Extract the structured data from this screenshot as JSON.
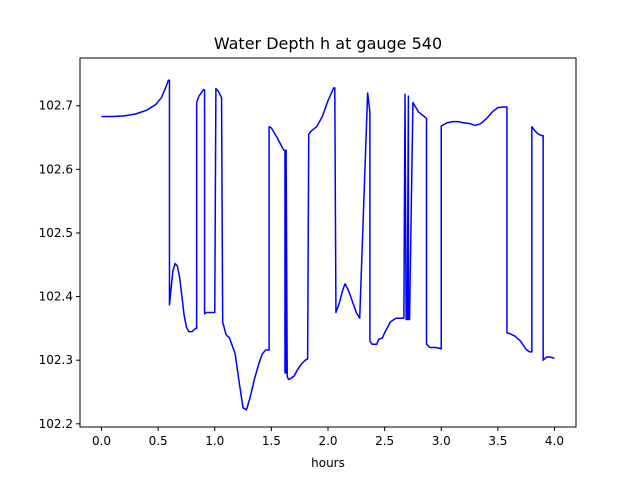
{
  "chart_data": {
    "type": "line",
    "title": "Water Depth h at gauge 540",
    "xlabel": "hours",
    "ylabel": "",
    "xlim": [
      -0.19,
      4.19
    ],
    "ylim": [
      102.195,
      102.775
    ],
    "xticks": [
      0.0,
      0.5,
      1.0,
      1.5,
      2.0,
      2.5,
      3.0,
      3.5,
      4.0
    ],
    "xtick_labels": [
      "0.0",
      "0.5",
      "1.0",
      "1.5",
      "2.0",
      "2.5",
      "3.0",
      "3.5",
      "4.0"
    ],
    "yticks": [
      102.2,
      102.3,
      102.4,
      102.5,
      102.6,
      102.7
    ],
    "ytick_labels": [
      "102.2",
      "102.3",
      "102.4",
      "102.5",
      "102.6",
      "102.7"
    ],
    "grid": false,
    "series": [
      {
        "color": "#0000ff",
        "x": [
          0.0,
          0.1,
          0.2,
          0.3,
          0.4,
          0.48,
          0.53,
          0.57,
          0.59,
          0.6,
          0.6,
          0.61,
          0.63,
          0.65,
          0.67,
          0.69,
          0.71,
          0.73,
          0.75,
          0.77,
          0.8,
          0.83,
          0.84,
          0.84,
          0.86,
          0.9,
          0.91,
          0.91,
          0.93,
          0.96,
          0.99,
          1.0,
          1.01,
          1.03,
          1.06,
          1.07,
          1.1,
          1.13,
          1.15,
          1.18,
          1.2,
          1.22,
          1.25,
          1.28,
          1.31,
          1.35,
          1.39,
          1.42,
          1.45,
          1.47,
          1.48,
          1.48,
          1.5,
          1.55,
          1.6,
          1.61,
          1.62,
          1.62,
          1.63,
          1.63,
          1.64,
          1.65,
          1.66,
          1.7,
          1.73,
          1.77,
          1.8,
          1.82,
          1.82,
          1.83,
          1.85,
          1.9,
          1.95,
          2.0,
          2.05,
          2.06,
          2.07,
          2.1,
          2.13,
          2.15,
          2.18,
          2.21,
          2.25,
          2.28,
          2.28,
          2.35,
          2.37,
          2.37,
          2.39,
          2.43,
          2.45,
          2.48,
          2.5,
          2.55,
          2.6,
          2.65,
          2.67,
          2.68,
          2.69,
          2.7,
          2.71,
          2.71,
          2.72,
          2.75,
          2.8,
          2.85,
          2.87,
          2.87,
          2.9,
          2.95,
          3.0,
          3.0,
          3.05,
          3.1,
          3.15,
          3.2,
          3.25,
          3.3,
          3.35,
          3.4,
          3.45,
          3.5,
          3.55,
          3.58,
          3.58,
          3.6,
          3.65,
          3.7,
          3.75,
          3.78,
          3.8,
          3.8,
          3.83,
          3.86,
          3.89,
          3.9,
          3.9,
          3.93,
          3.96,
          4.0
        ],
        "y": [
          102.683,
          102.683,
          102.684,
          102.687,
          102.693,
          102.702,
          102.713,
          102.73,
          102.74,
          102.74,
          102.387,
          102.405,
          102.44,
          102.452,
          102.448,
          102.43,
          102.4,
          102.37,
          102.352,
          102.345,
          102.345,
          102.35,
          102.35,
          102.705,
          102.715,
          102.725,
          102.725,
          102.373,
          102.375,
          102.375,
          102.375,
          102.375,
          102.727,
          102.723,
          102.713,
          102.36,
          102.34,
          102.335,
          102.325,
          102.31,
          102.285,
          102.26,
          102.225,
          102.222,
          102.24,
          102.27,
          102.295,
          102.31,
          102.316,
          102.316,
          102.316,
          102.667,
          102.665,
          102.65,
          102.633,
          102.63,
          102.63,
          102.28,
          102.28,
          102.63,
          102.275,
          102.27,
          102.27,
          102.275,
          102.285,
          102.295,
          102.3,
          102.302,
          102.302,
          102.655,
          102.66,
          102.667,
          102.683,
          102.708,
          102.728,
          102.728,
          102.375,
          102.39,
          102.41,
          102.42,
          102.41,
          102.395,
          102.375,
          102.366,
          102.366,
          102.72,
          102.69,
          102.33,
          102.325,
          102.325,
          102.333,
          102.335,
          102.343,
          102.36,
          102.366,
          102.366,
          102.366,
          102.718,
          102.364,
          102.364,
          102.715,
          102.364,
          102.364,
          102.705,
          102.69,
          102.683,
          102.68,
          102.325,
          102.32,
          102.32,
          102.318,
          102.668,
          102.673,
          102.675,
          102.675,
          102.673,
          102.672,
          102.669,
          102.672,
          102.68,
          102.69,
          102.697,
          102.698,
          102.698,
          102.343,
          102.342,
          102.338,
          102.33,
          102.317,
          102.313,
          102.313,
          102.667,
          102.66,
          102.655,
          102.653,
          102.653,
          102.3,
          102.305,
          102.305,
          102.303
        ]
      }
    ]
  }
}
